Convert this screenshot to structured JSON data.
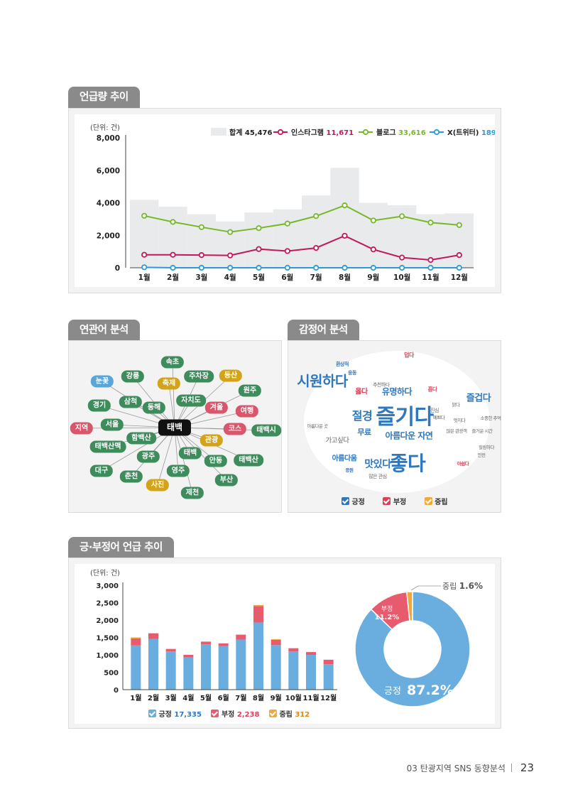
{
  "sections": {
    "mention_trend": "언급량 추이",
    "related_words": "연관어 분석",
    "sentiment_words": "감정어 분석",
    "sentiment_trend": "긍·부정어 언급 추이"
  },
  "line_chart": {
    "unit": "(단위: 건)",
    "legend": {
      "total": {
        "label": "합계",
        "value": "45,476",
        "color": "#e9eaec"
      },
      "instagram": {
        "label": "인스타그램",
        "value": "11,671",
        "color": "#c2185b"
      },
      "blog": {
        "label": "블로그",
        "value": "33,616",
        "color": "#76b82a"
      },
      "x": {
        "label": "X(트위터)",
        "value": "189",
        "color": "#2b9bd6"
      }
    },
    "y_ticks": [
      "8,000",
      "6,000",
      "4,000",
      "2,000",
      "0"
    ],
    "months": [
      "1월",
      "2월",
      "3월",
      "4월",
      "5월",
      "6월",
      "7월",
      "8월",
      "9월",
      "10월",
      "11월",
      "12월"
    ]
  },
  "chart_data": [
    {
      "type": "line",
      "x": [
        "1월",
        "2월",
        "3월",
        "4월",
        "5월",
        "6월",
        "7월",
        "8월",
        "9월",
        "10월",
        "11월",
        "12월"
      ],
      "ylim": [
        0,
        8000
      ],
      "unit": "(단위: 건)",
      "series": [
        {
          "name": "합계",
          "kind": "area",
          "color": "#e9eaec",
          "values": [
            4180,
            3760,
            3300,
            2850,
            3400,
            3600,
            4450,
            6150,
            4000,
            3850,
            3300,
            3350
          ]
        },
        {
          "name": "인스타그램",
          "color": "#c2185b",
          "values": [
            800,
            800,
            780,
            760,
            1150,
            1030,
            1220,
            1970,
            1130,
            630,
            480,
            780
          ]
        },
        {
          "name": "블로그",
          "color": "#76b82a",
          "values": [
            3200,
            2820,
            2500,
            2200,
            2440,
            2720,
            3180,
            3840,
            2910,
            3170,
            2780,
            2630
          ]
        },
        {
          "name": "X(트위터)",
          "color": "#2b9bd6",
          "values": [
            30,
            0,
            0,
            0,
            0,
            0,
            0,
            0,
            0,
            0,
            0,
            0
          ]
        }
      ]
    },
    {
      "type": "bar",
      "stacked": true,
      "categories": [
        "1월",
        "2월",
        "3월",
        "4월",
        "5월",
        "6월",
        "7월",
        "8월",
        "9월",
        "10월",
        "11월",
        "12월"
      ],
      "ylim": [
        0,
        3000
      ],
      "unit": "(단위: 건)",
      "y_ticks": [
        "3,000",
        "2,500",
        "2,000",
        "1,500",
        "1,000",
        "500",
        "0"
      ],
      "series": [
        {
          "name": "긍정",
          "color": "#6aaee0",
          "values": [
            1270,
            1460,
            1100,
            930,
            1300,
            1250,
            1440,
            1930,
            1280,
            1100,
            1000,
            730
          ]
        },
        {
          "name": "부정",
          "color": "#e85a6e",
          "values": [
            200,
            160,
            70,
            70,
            80,
            80,
            140,
            470,
            150,
            90,
            80,
            130
          ]
        },
        {
          "name": "중립",
          "color": "#f2a93b",
          "values": [
            30,
            0,
            0,
            0,
            0,
            0,
            0,
            30,
            20,
            0,
            0,
            0
          ]
        }
      ]
    },
    {
      "type": "pie",
      "donut": true,
      "slices": [
        {
          "name": "긍정",
          "value": 87.2,
          "color": "#6aaee0"
        },
        {
          "name": "부정",
          "value": 11.2,
          "color": "#e85a6e"
        },
        {
          "name": "중립",
          "value": 1.6,
          "color": "#f2a93b"
        }
      ]
    }
  ],
  "network": {
    "center": "태백",
    "nodes": [
      {
        "label": "속초",
        "color": "green"
      },
      {
        "label": "강릉",
        "color": "green"
      },
      {
        "label": "주차장",
        "color": "green"
      },
      {
        "label": "등산",
        "color": "gold"
      },
      {
        "label": "눈꽃",
        "color": "blue"
      },
      {
        "label": "축제",
        "color": "gold"
      },
      {
        "label": "원주",
        "color": "green"
      },
      {
        "label": "삼척",
        "color": "green"
      },
      {
        "label": "자치도",
        "color": "green"
      },
      {
        "label": "경기",
        "color": "green"
      },
      {
        "label": "동해",
        "color": "green"
      },
      {
        "label": "겨울",
        "color": "red"
      },
      {
        "label": "여행",
        "color": "red"
      },
      {
        "label": "지역",
        "color": "red"
      },
      {
        "label": "서울",
        "color": "green"
      },
      {
        "label": "코스",
        "color": "red"
      },
      {
        "label": "태백시",
        "color": "green"
      },
      {
        "label": "함백산",
        "color": "green"
      },
      {
        "label": "관광",
        "color": "gold"
      },
      {
        "label": "태백산맥",
        "color": "green"
      },
      {
        "label": "태백",
        "color": "green"
      },
      {
        "label": "광주",
        "color": "green"
      },
      {
        "label": "안동",
        "color": "green"
      },
      {
        "label": "태백산",
        "color": "green"
      },
      {
        "label": "대구",
        "color": "green"
      },
      {
        "label": "영주",
        "color": "green"
      },
      {
        "label": "춘천",
        "color": "green"
      },
      {
        "label": "부산",
        "color": "green"
      },
      {
        "label": "사진",
        "color": "gold"
      },
      {
        "label": "제천",
        "color": "green"
      }
    ]
  },
  "word_cloud": {
    "words": [
      {
        "text": "덥다",
        "tone": "neg"
      },
      {
        "text": "환상적",
        "tone": "pos"
      },
      {
        "text": "웅동",
        "tone": "pos"
      },
      {
        "text": "시원하다",
        "tone": "pos"
      },
      {
        "text": "추천하다",
        "tone": "neu"
      },
      {
        "text": "옳다",
        "tone": "neg"
      },
      {
        "text": "유명하다",
        "tone": "pos"
      },
      {
        "text": "흡다",
        "tone": "neg"
      },
      {
        "text": "즐겁다",
        "tone": "pos"
      },
      {
        "text": "절경",
        "tone": "pos"
      },
      {
        "text": "즐기다",
        "tone": "pos"
      },
      {
        "text": "진심",
        "tone": "neu"
      },
      {
        "text": "맑다",
        "tone": "neu"
      },
      {
        "text": "예쁘다",
        "tone": "neu"
      },
      {
        "text": "멋지다",
        "tone": "neu"
      },
      {
        "text": "소중한 추억",
        "tone": "neu"
      },
      {
        "text": "아름다운 곳",
        "tone": "neu"
      },
      {
        "text": "무료",
        "tone": "pos"
      },
      {
        "text": "아름다운 자연",
        "tone": "pos"
      },
      {
        "text": "많은 관광객",
        "tone": "neu"
      },
      {
        "text": "즐거운 시간",
        "tone": "neu"
      },
      {
        "text": "가고싶다",
        "tone": "neu"
      },
      {
        "text": "힐링하다",
        "tone": "neu"
      },
      {
        "text": "안전",
        "tone": "neu"
      },
      {
        "text": "아름다움",
        "tone": "pos"
      },
      {
        "text": "좋다",
        "tone": "pos"
      },
      {
        "text": "아쉽다",
        "tone": "neg"
      },
      {
        "text": "응원",
        "tone": "pos"
      },
      {
        "text": "맛있다",
        "tone": "pos"
      },
      {
        "text": "많은 관심",
        "tone": "neu"
      }
    ],
    "legend": {
      "pos": "긍정",
      "neg": "부정",
      "neu": "중립"
    }
  },
  "bar_legend": {
    "pos": {
      "label": "긍정",
      "value": "17,335"
    },
    "neg": {
      "label": "부정",
      "value": "2,238"
    },
    "neu": {
      "label": "중립",
      "value": "312"
    }
  },
  "donut_labels": {
    "neutral": {
      "label": "중립",
      "value": "1.6%"
    },
    "negative": {
      "label": "부정",
      "value": "11.2%"
    },
    "positive": {
      "label": "긍정",
      "value": "87.2%"
    }
  },
  "footer": {
    "text": "03 탄광지역 SNS 동향분석",
    "page": "23"
  },
  "colors": {
    "tab": "#8a8a8a",
    "panel": "#f3f3f4",
    "positive": "#6aaee0",
    "negative": "#e85a6e",
    "neutral": "#f2a93b",
    "network_green": "#3e8c5b"
  }
}
